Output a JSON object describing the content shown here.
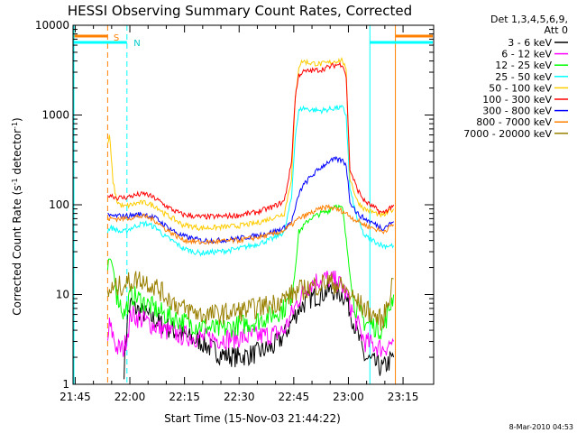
{
  "chart_data": {
    "type": "line",
    "title": "HESSI Observing Summary Count Rates, Corrected",
    "xlabel": "Start Time (15-Nov-03 21:44:22)",
    "ylabel_main": "Corrected Count Rate (s",
    "ylabel_sup1": "-1",
    "ylabel_mid": " detector",
    "ylabel_sup2": "-1",
    "ylabel_end": ")",
    "x_unit": "minutes since 21:44:22",
    "xlim": [
      0,
      99
    ],
    "ylim": [
      1,
      10000
    ],
    "yscale": "log",
    "x_ticks": [
      {
        "label": "21:45",
        "x": 0.6
      },
      {
        "label": "22:00",
        "x": 15.6
      },
      {
        "label": "22:15",
        "x": 30.6
      },
      {
        "label": "22:30",
        "x": 45.6
      },
      {
        "label": "22:45",
        "x": 60.6
      },
      {
        "label": "23:00",
        "x": 75.6
      },
      {
        "label": "23:15",
        "x": 90.6
      }
    ],
    "y_ticks": [
      {
        "label": "1",
        "y": 1
      },
      {
        "label": "10",
        "y": 10
      },
      {
        "label": "100",
        "y": 100
      },
      {
        "label": "1000",
        "y": 1000
      },
      {
        "label": "10000",
        "y": 10000
      }
    ],
    "legend_header": [
      "Det 1,3,4,5,6,9,",
      "Att 0"
    ],
    "legend_position": "right",
    "annotations": {
      "saa_label": "S",
      "night_label": "N",
      "timestamp": "8-Mar-2010 04:53"
    },
    "flags": {
      "saa_start": 9.5,
      "saa_end": 88.5,
      "night_start": 14.8,
      "night_end": 81.5
    },
    "series": [
      {
        "name": "3 - 6 keV",
        "color": "#000000",
        "x": [
          14,
          15,
          16,
          17,
          20,
          25,
          30,
          35,
          40,
          45,
          50,
          55,
          58,
          60,
          62,
          65,
          68,
          70,
          72,
          74,
          75,
          77,
          80,
          85,
          88
        ],
        "y": [
          1.5,
          6,
          8,
          7,
          6,
          4.5,
          3.5,
          3,
          2.2,
          2,
          2.2,
          2.6,
          3.5,
          5,
          7,
          9,
          10,
          11,
          11,
          10,
          9,
          5,
          2,
          1.5,
          2
        ]
      },
      {
        "name": "6 - 12 keV",
        "color": "#ff00ff",
        "x": [
          9.5,
          10,
          11,
          12,
          13,
          14,
          16,
          20,
          25,
          30,
          35,
          40,
          45,
          50,
          55,
          58,
          60,
          62,
          65,
          68,
          70,
          72,
          74,
          75,
          77,
          80,
          85,
          88
        ],
        "y": [
          3,
          4.5,
          3.5,
          2.5,
          2.5,
          2.5,
          6,
          5,
          4,
          3.5,
          3.3,
          3.2,
          3.3,
          3.4,
          3.6,
          4,
          6,
          9,
          13,
          15,
          15,
          14,
          12,
          10,
          6,
          3,
          2.5,
          3
        ]
      },
      {
        "name": "12 - 25 keV",
        "color": "#00ff00",
        "x": [
          9.5,
          10,
          11,
          12,
          13,
          14,
          16,
          20,
          25,
          30,
          35,
          40,
          45,
          50,
          55,
          58,
          60,
          61,
          62,
          65,
          68,
          70,
          72,
          74,
          75,
          77,
          80,
          85,
          88
        ],
        "y": [
          15,
          25,
          20,
          10,
          8,
          6,
          10,
          8,
          6,
          5,
          4.5,
          4,
          4.5,
          5,
          6,
          7,
          10,
          20,
          50,
          70,
          80,
          85,
          100,
          90,
          40,
          8,
          5,
          4,
          10
        ]
      },
      {
        "name": "25 - 50 keV",
        "color": "#00ffff",
        "x": [
          9.5,
          10,
          11,
          12,
          13,
          14,
          16,
          18,
          20,
          23,
          25,
          28,
          30,
          33,
          35,
          40,
          45,
          50,
          55,
          58,
          60,
          61,
          62,
          63,
          65,
          68,
          70,
          72,
          74,
          75,
          76,
          78,
          80,
          85,
          88
        ],
        "y": [
          50,
          55,
          55,
          52,
          50,
          50,
          55,
          60,
          62,
          55,
          45,
          38,
          33,
          30,
          29,
          30,
          32,
          36,
          42,
          50,
          120,
          600,
          1100,
          1200,
          1150,
          1120,
          1150,
          1200,
          1200,
          1000,
          150,
          70,
          45,
          35,
          35
        ]
      },
      {
        "name": "50 - 100 keV",
        "color": "#ffcc00",
        "x": [
          9.5,
          10,
          11,
          12,
          13,
          14,
          16,
          18,
          20,
          23,
          25,
          28,
          30,
          33,
          35,
          40,
          45,
          50,
          55,
          58,
          60,
          61,
          62,
          63,
          65,
          68,
          70,
          72,
          74,
          75,
          76,
          78,
          80,
          85,
          88
        ],
        "y": [
          450,
          600,
          180,
          110,
          100,
          95,
          100,
          105,
          105,
          95,
          80,
          68,
          60,
          57,
          55,
          56,
          58,
          62,
          72,
          80,
          200,
          1500,
          3500,
          4000,
          3800,
          3700,
          3800,
          4000,
          4100,
          3000,
          200,
          110,
          90,
          75,
          90
        ]
      },
      {
        "name": "100 - 300 keV",
        "color": "#ff0000",
        "x": [
          9.5,
          10,
          11,
          12,
          13,
          14,
          16,
          18,
          20,
          23,
          25,
          28,
          30,
          33,
          35,
          40,
          45,
          50,
          55,
          58,
          60,
          61,
          62,
          63,
          65,
          68,
          70,
          72,
          74,
          75,
          76,
          78,
          80,
          85,
          88
        ],
        "y": [
          120,
          130,
          125,
          120,
          120,
          120,
          125,
          130,
          132,
          115,
          100,
          85,
          78,
          75,
          73,
          74,
          76,
          82,
          95,
          110,
          300,
          1600,
          2800,
          3000,
          3100,
          3200,
          3400,
          3600,
          3700,
          2700,
          250,
          150,
          110,
          80,
          100
        ]
      },
      {
        "name": "300 - 800 keV",
        "color": "#0000ff",
        "x": [
          9.5,
          10,
          12,
          14,
          16,
          18,
          20,
          23,
          25,
          28,
          30,
          33,
          35,
          40,
          45,
          50,
          55,
          58,
          60,
          61,
          62,
          63,
          65,
          68,
          70,
          72,
          74,
          75,
          76,
          78,
          80,
          85,
          88
        ],
        "y": [
          75,
          75,
          75,
          75,
          76,
          78,
          78,
          70,
          60,
          50,
          45,
          42,
          40,
          40,
          42,
          45,
          50,
          55,
          65,
          90,
          130,
          160,
          200,
          260,
          300,
          320,
          310,
          280,
          110,
          80,
          70,
          55,
          65
        ]
      },
      {
        "name": "800 - 7000 keV",
        "color": "#ff8000",
        "x": [
          9.5,
          10,
          12,
          14,
          16,
          18,
          20,
          23,
          25,
          28,
          30,
          33,
          35,
          40,
          45,
          50,
          55,
          58,
          60,
          62,
          65,
          68,
          70,
          72,
          74,
          75,
          77,
          80,
          85,
          88
        ],
        "y": [
          70,
          70,
          70,
          70,
          72,
          74,
          74,
          65,
          55,
          46,
          41,
          39,
          38,
          39,
          40,
          43,
          47,
          52,
          60,
          70,
          80,
          90,
          95,
          90,
          85,
          80,
          70,
          60,
          50,
          60
        ]
      },
      {
        "name": "7000 - 20000 keV",
        "color": "#998000",
        "x": [
          9.5,
          10,
          12,
          14,
          16,
          18,
          20,
          23,
          25,
          28,
          30,
          33,
          35,
          40,
          45,
          50,
          55,
          58,
          60,
          62,
          65,
          68,
          70,
          72,
          74,
          75,
          77,
          80,
          85,
          88
        ],
        "y": [
          10,
          11,
          12,
          13,
          14,
          15,
          14,
          12,
          10,
          8,
          7,
          6.5,
          6,
          6,
          6.5,
          7,
          8,
          9,
          10,
          11,
          12,
          13,
          14,
          13,
          12,
          11,
          9,
          7,
          5,
          15
        ]
      }
    ]
  }
}
